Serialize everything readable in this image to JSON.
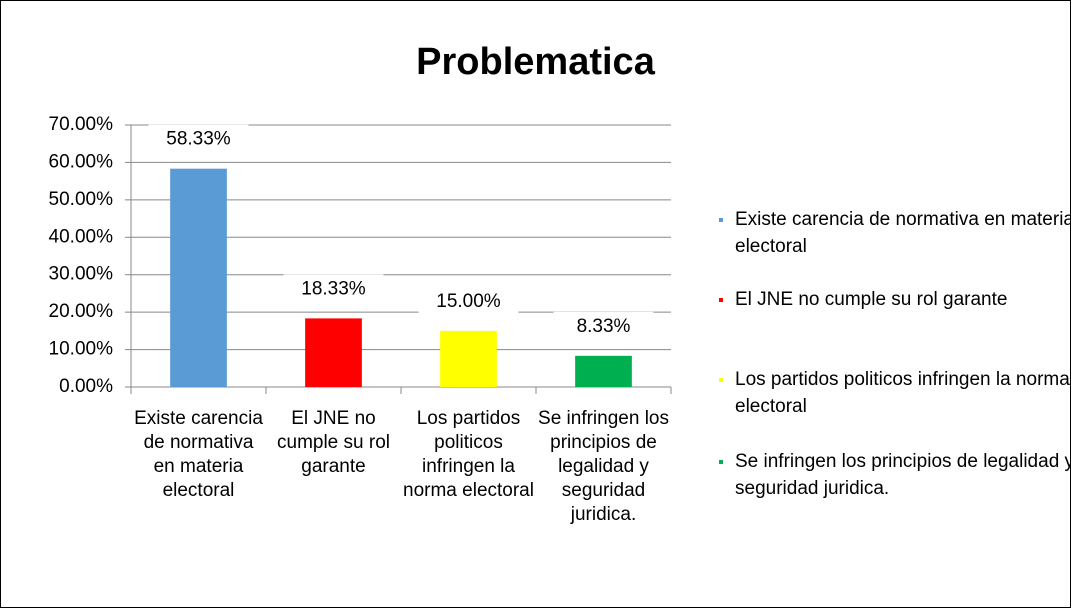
{
  "chart_data": {
    "type": "bar",
    "title": "Problematica",
    "categories": [
      "Existe carencia de normativa en materia electoral",
      "El JNE no cumple su rol garante",
      "Los partidos politicos infringen la norma electoral",
      "Se infringen los principios de legalidad y seguridad juridica."
    ],
    "values": [
      58.33,
      18.33,
      15.0,
      8.33
    ],
    "value_labels": [
      "58.33%",
      "18.33%",
      "15.00%",
      "8.33%"
    ],
    "colors": [
      "#5b9bd5",
      "#ff0000",
      "#ffff00",
      "#00b050"
    ],
    "ylim": [
      0,
      70
    ],
    "yticks": [
      {
        "value": 0,
        "label": "0.00%"
      },
      {
        "value": 10,
        "label": "10.00%"
      },
      {
        "value": 20,
        "label": "20.00%"
      },
      {
        "value": 30,
        "label": "30.00%"
      },
      {
        "value": 40,
        "label": "40.00%"
      },
      {
        "value": 50,
        "label": "50.00%"
      },
      {
        "value": 60,
        "label": "60.00%"
      },
      {
        "value": 70,
        "label": "70.00%"
      }
    ],
    "grid": true,
    "legend": "right"
  }
}
